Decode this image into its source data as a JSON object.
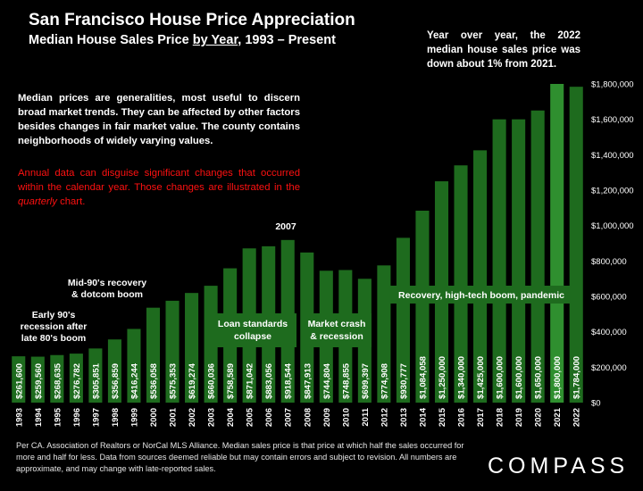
{
  "header": {
    "title": "San Francisco House Price Appreciation",
    "subtitle_pre": "Median House Sales Price ",
    "subtitle_u": "by Year",
    "subtitle_post": ", 1993 – Present"
  },
  "top_note": "Year over year, the 2022 median house sales price was down about 1% from 2021.",
  "description": "Median prices are generalities, most useful to discern broad market trends. They can be affected by other factors besides changes in fair market value. The county contains neighborhoods of widely varying values.",
  "red_note": {
    "pre": "Annual data can disguise significant changes that occurred within the calendar year. Those changes are illustrated in the ",
    "em": "quarterly",
    "post": " chart."
  },
  "footnote": "Per CA. Association of Realtors or NorCal MLS Alliance. Median sales price is that price at which half the sales occurred for more and half for less. Data from sources deemed reliable but may contain errors and subject to revision. All numbers are approximate, and may change with late-reported sales.",
  "logo": "COMPASS",
  "colors": {
    "bar": "#1e6b1e",
    "bar_highlight": "#2f8f2f",
    "background": "#000000",
    "annotation_box": "#1e6b1e"
  },
  "chart_data": {
    "type": "bar",
    "categories": [
      "1993",
      "1994",
      "1995",
      "1996",
      "1997",
      "1998",
      "1999",
      "2000",
      "2001",
      "2002",
      "2003",
      "2004",
      "2005",
      "2006",
      "2007",
      "2008",
      "2009",
      "2010",
      "2011",
      "2012",
      "2013",
      "2014",
      "2015",
      "2016",
      "2017",
      "2018",
      "2019",
      "2020",
      "2021",
      "2022"
    ],
    "values": [
      261600,
      259560,
      268635,
      276782,
      305851,
      356859,
      416244,
      536058,
      575353,
      619274,
      660036,
      758589,
      871042,
      883056,
      918544,
      847913,
      744804,
      748855,
      699397,
      774908,
      930777,
      1084058,
      1250000,
      1340000,
      1425000,
      1600000,
      1600000,
      1650000,
      1800000,
      1784000
    ],
    "data_labels": [
      "$261,600",
      "$259,560",
      "$268,635",
      "$276,782",
      "$305,851",
      "$356,859",
      "$416,244",
      "$536,058",
      "$575,353",
      "$619,274",
      "$660,036",
      "$758,589",
      "$871,042",
      "$883,056",
      "$918,544",
      "$847,913",
      "$744,804",
      "$748,855",
      "$699,397",
      "$774,908",
      "$930,777",
      "$1,084,058",
      "$1,250,000",
      "$1,340,000",
      "$1,425,000",
      "$1,600,000",
      "$1,600,000",
      "$1,650,000",
      "$1,800,000",
      "$1,784,000"
    ],
    "ylim": [
      0,
      1800000
    ],
    "y_ticks": [
      0,
      200000,
      400000,
      600000,
      800000,
      1000000,
      1200000,
      1400000,
      1600000,
      1800000
    ],
    "y_tick_labels": [
      "$0",
      "$200,000",
      "$400,000",
      "$600,000",
      "$800,000",
      "$1,000,000",
      "$1,200,000",
      "$1,400,000",
      "$1,600,000",
      "$1,800,000"
    ],
    "y_axis_position": "right",
    "grid": false,
    "annotations": [
      {
        "id": "early90s",
        "lines": [
          "Early 90's",
          "recession after",
          "late 80's boom"
        ],
        "boxed": false
      },
      {
        "id": "mid90s",
        "lines": [
          "Mid-90's recovery",
          "& dotcom boom"
        ],
        "boxed": false
      },
      {
        "id": "peak2007",
        "lines": [
          "2007"
        ],
        "boxed": false
      },
      {
        "id": "loan",
        "lines": [
          "Loan standards",
          "collapse"
        ],
        "boxed": true
      },
      {
        "id": "crash",
        "lines": [
          "Market crash",
          "& recession"
        ],
        "boxed": true
      },
      {
        "id": "recovery",
        "lines": [
          "Recovery, high-tech boom, pandemic"
        ],
        "boxed": true
      }
    ]
  }
}
